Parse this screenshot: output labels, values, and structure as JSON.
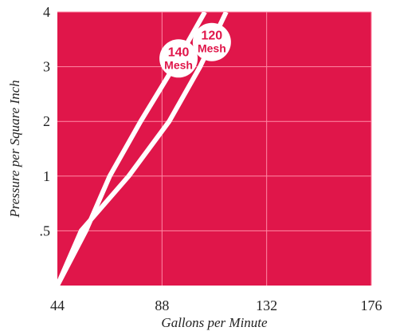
{
  "chart_data": {
    "type": "line",
    "title": "",
    "xlabel": "Gallons per Minute",
    "ylabel": "Pressure per Square Inch",
    "x_ticks": [
      "44",
      "88",
      "132",
      "176"
    ],
    "y_ticks": [
      ".5",
      "1",
      "2",
      "3",
      "4"
    ],
    "xlim": [
      44,
      176
    ],
    "ylim": [
      0,
      4
    ],
    "y_tick_levels": [
      0.5,
      1,
      2,
      3,
      4
    ],
    "grid": true,
    "series": [
      {
        "name": "140 Mesh",
        "label_line1": "140",
        "label_line2": "Mesh",
        "points": [
          [
            44,
            0
          ],
          [
            56,
            0.5
          ],
          [
            66,
            1
          ],
          [
            79,
            2
          ],
          [
            93,
            3
          ],
          [
            106,
            4
          ]
        ]
      },
      {
        "name": "120 Mesh",
        "label_line1": "120",
        "label_line2": "Mesh",
        "points": [
          [
            44,
            0
          ],
          [
            54,
            0.5
          ],
          [
            74,
            1
          ],
          [
            91,
            2
          ],
          [
            104,
            3
          ],
          [
            115,
            4
          ]
        ]
      }
    ],
    "colors": {
      "plot_background": "#e0164a",
      "gridline": "#ff8aa5",
      "series_line": "#ffffff",
      "label_badge": "#ffffff",
      "label_text": "#e0164a"
    }
  }
}
